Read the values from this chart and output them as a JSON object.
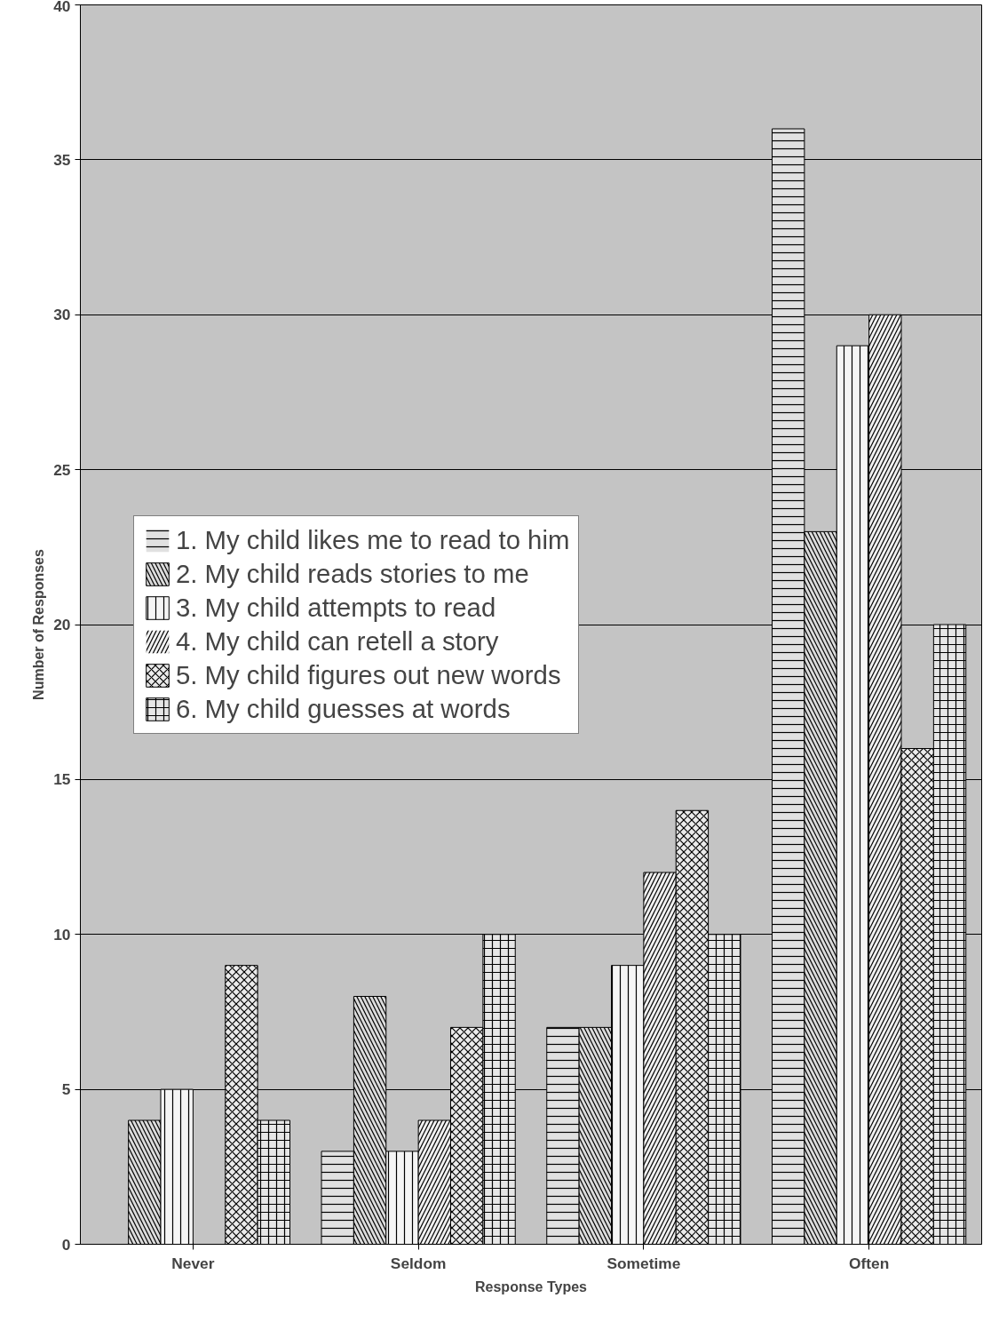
{
  "chart_data": {
    "type": "bar",
    "xlabel": "Response Types",
    "ylabel": "Number of Responses",
    "categories": [
      "Never",
      "Seldom",
      "Sometime",
      "Often"
    ],
    "series": [
      {
        "name": "1. My child likes me to read to him",
        "color": "#e1e1e1",
        "values": [
          0,
          3,
          7,
          36
        ]
      },
      {
        "name": "2. My child reads stories to me",
        "color": "#dbdbdb",
        "values": [
          4,
          8,
          7,
          23
        ]
      },
      {
        "name": "3. My child attempts to read",
        "color": "#f5f5f5",
        "values": [
          5,
          3,
          9,
          29
        ]
      },
      {
        "name": "4. My child can retell a story",
        "color": "#f0f0f0",
        "values": [
          0,
          4,
          12,
          30
        ]
      },
      {
        "name": "5. My child figures out new words",
        "color": "#ebebeb",
        "values": [
          9,
          7,
          14,
          16
        ]
      },
      {
        "name": "6. My child guesses at words",
        "color": "#e6e6e6",
        "values": [
          4,
          10,
          10,
          20
        ]
      }
    ],
    "ylim": [
      0,
      40
    ],
    "yticks": [
      0,
      5,
      10,
      15,
      20,
      25,
      30,
      35,
      40
    ],
    "grid": "y",
    "legend": "left"
  }
}
